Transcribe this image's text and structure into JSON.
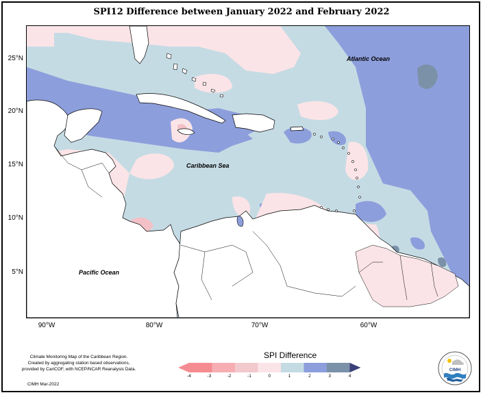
{
  "title": "SPI12 Difference between January 2022 and February 2022",
  "map": {
    "latitude_labels": [
      {
        "text": "25°N",
        "value": 25
      },
      {
        "text": "20°N",
        "value": 20
      },
      {
        "text": "15°N",
        "value": 15
      },
      {
        "text": "10°N",
        "value": 10
      },
      {
        "text": "5°N",
        "value": 5
      }
    ],
    "longitude_labels": [
      {
        "text": "90°W",
        "value": -90
      },
      {
        "text": "80°W",
        "value": -80
      },
      {
        "text": "70°W",
        "value": -70
      },
      {
        "text": "60°W",
        "value": -60
      }
    ],
    "place_labels": {
      "atlantic": "Atlantic Ocean",
      "caribbean": "Caribbean Sea",
      "pacific": "Pacific Ocean"
    },
    "colors": {
      "ocean_base": "#c5dbe4",
      "land": "#ffffff",
      "pos1": "#8d9edc",
      "pos2": "#7b91a8",
      "neg1": "#fbe4e7",
      "neg2": "#f2c0c6"
    }
  },
  "credit": {
    "line1": "Climate Monitoring Map of the Caribbean Region.",
    "line2": "Created by aggregating station based observations,",
    "line3": "provided by CariCOF, with NCEP/NCAR Reanalysis Data.",
    "date": "CIMH Mar-2022"
  },
  "legend": {
    "title": "SPI Difference",
    "ticks": [
      "-4",
      "-3",
      "-2",
      "-1",
      "0",
      "1",
      "2",
      "3",
      "4"
    ],
    "colors": [
      "#f58c91",
      "#f6aeb3",
      "#f2c9cd",
      "#fbe4e7",
      "#c5dbe4",
      "#8d9edc",
      "#7b91a8",
      "#4f5d86",
      "#3b3f78"
    ]
  },
  "logo": {
    "text": "CIMH"
  }
}
